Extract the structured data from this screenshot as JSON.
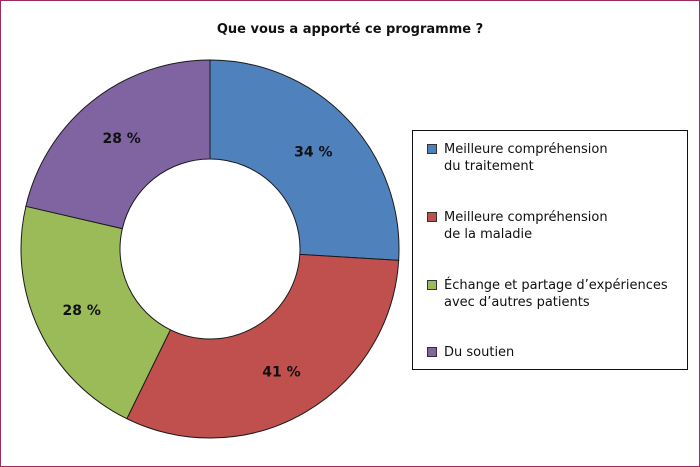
{
  "chart_data": {
    "type": "pie",
    "title": "Que vous a apporté ce programme ?",
    "series": [
      {
        "label": "Meilleure compréhension\ndu traitement",
        "value": 34,
        "value_label": "34 %",
        "color": "#4f81bd"
      },
      {
        "label": "Meilleure compréhension\nde la maladie",
        "value": 41,
        "value_label": "41 %",
        "color": "#c0504d"
      },
      {
        "label": "Échange et partage d’expériences\navec d’autres patients",
        "value": 28,
        "value_label": "28 %",
        "color": "#9bbb59"
      },
      {
        "label": "Du soutien",
        "value": 28,
        "value_label": "28 %",
        "color": "#8064a2"
      }
    ],
    "legend_position": "right",
    "donut": true
  },
  "colors": {
    "frame_border": "#9b2c62"
  }
}
